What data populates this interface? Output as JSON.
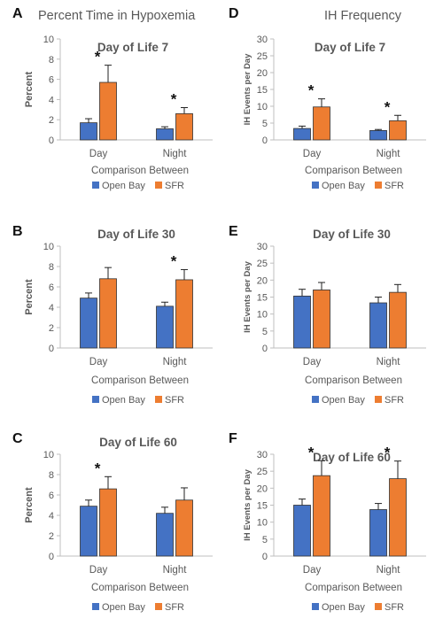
{
  "column_titles": {
    "left": "Percent Time in Hypoxemia",
    "right": "IH Frequency"
  },
  "colors": {
    "open_bay": "#4472C4",
    "sfr": "#ED7D31",
    "bar_border": "#333333",
    "axis": "#bfbfbf"
  },
  "chart_data": [
    {
      "panel": "A",
      "type": "bar",
      "title": "Day of Life 7",
      "xlabel": "Comparison Between",
      "ylabel": "Percent",
      "ylim": [
        0,
        10
      ],
      "yticks": [
        0,
        2,
        4,
        6,
        8,
        10
      ],
      "categories": [
        "Day",
        "Night"
      ],
      "series": [
        {
          "name": "Open Bay",
          "values": [
            1.7,
            1.1
          ],
          "errors": [
            0.4,
            0.2
          ]
        },
        {
          "name": "SFR",
          "values": [
            5.7,
            2.6
          ],
          "errors": [
            1.7,
            0.6
          ]
        }
      ],
      "significance": [
        true,
        true
      ]
    },
    {
      "panel": "B",
      "type": "bar",
      "title": "Day of Life 30",
      "xlabel": "Comparison Between",
      "ylabel": "Percent",
      "ylim": [
        0,
        10
      ],
      "yticks": [
        0,
        2,
        4,
        6,
        8,
        10
      ],
      "categories": [
        "Day",
        "Night"
      ],
      "series": [
        {
          "name": "Open Bay",
          "values": [
            4.9,
            4.1
          ],
          "errors": [
            0.5,
            0.4
          ]
        },
        {
          "name": "SFR",
          "values": [
            6.8,
            6.7
          ],
          "errors": [
            1.1,
            1.0
          ]
        }
      ],
      "significance": [
        false,
        true
      ]
    },
    {
      "panel": "C",
      "type": "bar",
      "title": "Day of Life 60",
      "xlabel": "Comparison Between",
      "ylabel": "Percent",
      "ylim": [
        0,
        10
      ],
      "yticks": [
        0,
        2,
        4,
        6,
        8,
        10
      ],
      "categories": [
        "Day",
        "Night"
      ],
      "series": [
        {
          "name": "Open Bay",
          "values": [
            4.9,
            4.2
          ],
          "errors": [
            0.6,
            0.6
          ]
        },
        {
          "name": "SFR",
          "values": [
            6.6,
            5.5
          ],
          "errors": [
            1.2,
            1.2
          ]
        }
      ],
      "significance": [
        true,
        false
      ]
    },
    {
      "panel": "D",
      "type": "bar",
      "title": "Day of Life 7",
      "xlabel": "Comparison Between",
      "ylabel": "IH Events per Day",
      "ylim": [
        0,
        30
      ],
      "yticks": [
        0,
        5,
        10,
        15,
        20,
        25,
        30
      ],
      "categories": [
        "Day",
        "Night"
      ],
      "series": [
        {
          "name": "Open Bay",
          "values": [
            3.4,
            2.8
          ],
          "errors": [
            0.7,
            0.3
          ]
        },
        {
          "name": "SFR",
          "values": [
            9.8,
            5.7
          ],
          "errors": [
            2.4,
            1.6
          ]
        }
      ],
      "significance": [
        true,
        true
      ]
    },
    {
      "panel": "E",
      "type": "bar",
      "title": "Day of Life 30",
      "xlabel": "Comparison Between",
      "ylabel": "IH Events per Day",
      "ylim": [
        0,
        30
      ],
      "yticks": [
        0,
        5,
        10,
        15,
        20,
        25,
        30
      ],
      "categories": [
        "Day",
        "Night"
      ],
      "series": [
        {
          "name": "Open Bay",
          "values": [
            15.3,
            13.3
          ],
          "errors": [
            2.0,
            1.7
          ]
        },
        {
          "name": "SFR",
          "values": [
            17.1,
            16.4
          ],
          "errors": [
            2.2,
            2.3
          ]
        }
      ],
      "significance": [
        false,
        false
      ]
    },
    {
      "panel": "F",
      "type": "bar",
      "title": "Day of Life 60",
      "xlabel": "Comparison Between",
      "ylabel": "IH Events per Day",
      "ylim": [
        0,
        30
      ],
      "yticks": [
        0,
        5,
        10,
        15,
        20,
        25,
        30
      ],
      "categories": [
        "Day",
        "Night"
      ],
      "series": [
        {
          "name": "Open Bay",
          "values": [
            15.0,
            13.7
          ],
          "errors": [
            1.8,
            1.8
          ]
        },
        {
          "name": "SFR",
          "values": [
            23.7,
            22.8
          ],
          "errors": [
            4.4,
            5.2
          ]
        }
      ],
      "significance": [
        true,
        true
      ]
    }
  ]
}
